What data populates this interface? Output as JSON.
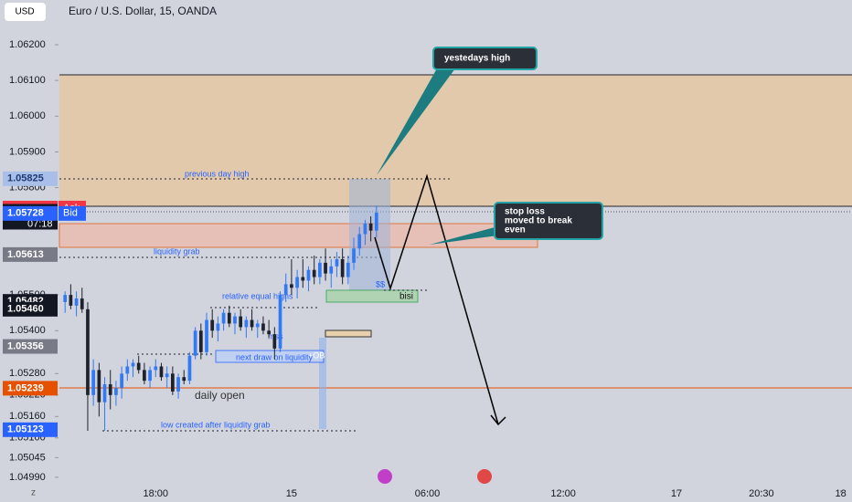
{
  "header": {
    "currency_button": "USD",
    "symbol_title": "Euro / U.S. Dollar, 15, OANDA"
  },
  "chart_data": {
    "type": "candlestick",
    "up_color": "#3179f5",
    "down_color": "#1e222d",
    "ylim": [
      1.04954,
      1.06325
    ],
    "yticks": [
      {
        "value": 1.062,
        "label": "1.06200"
      },
      {
        "value": 1.061,
        "label": "1.06100"
      },
      {
        "value": 1.06,
        "label": "1.06000"
      },
      {
        "value": 1.059,
        "label": "1.05900"
      },
      {
        "value": 1.058,
        "label": "1.05800"
      },
      {
        "value": 1.055,
        "label": "1.05500"
      },
      {
        "value": 1.054,
        "label": "1.05400"
      },
      {
        "value": 1.0528,
        "label": "1.05280"
      },
      {
        "value": 1.0522,
        "label": "1.05220"
      },
      {
        "value": 1.0516,
        "label": "1.05160"
      },
      {
        "value": 1.051,
        "label": "1.05100"
      },
      {
        "value": 1.05045,
        "label": "1.05045"
      },
      {
        "value": 1.0499,
        "label": "1.04990"
      }
    ],
    "xlim": [
      -17,
      123
    ],
    "xticks": [
      {
        "value": 0,
        "label": "18:00"
      },
      {
        "value": 24,
        "label": "15"
      },
      {
        "value": 48,
        "label": "06:00"
      },
      {
        "value": 72,
        "label": "12:00"
      },
      {
        "value": 92,
        "label": "17"
      },
      {
        "value": 107,
        "label": "20:30"
      },
      {
        "value": 121,
        "label": "18"
      }
    ],
    "x": [
      -16,
      -15,
      -14,
      -13,
      -12,
      -11,
      -10,
      -9,
      -8,
      -7,
      -6,
      -5,
      -4,
      -3,
      -2,
      -1,
      0,
      1,
      2,
      3,
      4,
      5,
      6,
      7,
      8,
      9,
      10,
      11,
      12,
      13,
      14,
      15,
      16,
      17,
      18,
      19,
      20,
      21,
      22,
      23,
      24,
      25,
      26,
      27,
      28,
      29,
      30,
      31,
      32,
      33,
      34,
      35,
      36,
      37,
      38,
      39
    ],
    "open": [
      1.0548,
      1.055,
      1.0547,
      1.0549,
      1.0546,
      1.0522,
      1.0529,
      1.052,
      1.0525,
      1.0522,
      1.0524,
      1.0528,
      1.053,
      1.0531,
      1.0529,
      1.0526,
      1.0529,
      1.053,
      1.0527,
      1.0528,
      1.0523,
      1.0527,
      1.0526,
      1.0533,
      1.054,
      1.0534,
      1.0543,
      1.054,
      1.0542,
      1.0545,
      1.0542,
      1.0544,
      1.0541,
      1.0543,
      1.0541,
      1.0542,
      1.054,
      1.0539,
      1.0535,
      1.055,
      1.0553,
      1.0552,
      1.0555,
      1.0554,
      1.0557,
      1.0555,
      1.0559,
      1.0556,
      1.0558,
      1.056,
      1.0555,
      1.0559,
      1.0563,
      1.0567,
      1.057,
      1.0568
    ],
    "high": [
      1.0551,
      1.0553,
      1.0551,
      1.0552,
      1.0548,
      1.0532,
      1.0531,
      1.0527,
      1.0529,
      1.0526,
      1.053,
      1.0532,
      1.0532,
      1.0533,
      1.0531,
      1.053,
      1.0532,
      1.0531,
      1.053,
      1.053,
      1.0528,
      1.0529,
      1.0534,
      1.0541,
      1.0542,
      1.0545,
      1.0546,
      1.0544,
      1.0546,
      1.0547,
      1.0545,
      1.0546,
      1.0544,
      1.0546,
      1.0543,
      1.0544,
      1.0543,
      1.0541,
      1.0551,
      1.0556,
      1.056,
      1.0557,
      1.056,
      1.0558,
      1.0561,
      1.056,
      1.0563,
      1.056,
      1.0562,
      1.0563,
      1.0561,
      1.0566,
      1.0569,
      1.0571,
      1.0572,
      1.0575
    ],
    "low": [
      1.0545,
      1.0546,
      1.0544,
      1.0545,
      1.0512,
      1.0519,
      1.0516,
      1.0512,
      1.0518,
      1.0519,
      1.0521,
      1.0526,
      1.0527,
      1.0528,
      1.0525,
      1.0524,
      1.0527,
      1.0526,
      1.0524,
      1.0522,
      1.0521,
      1.0525,
      1.0525,
      1.0532,
      1.0532,
      1.0533,
      1.0538,
      1.0537,
      1.054,
      1.0541,
      1.0539,
      1.054,
      1.0538,
      1.054,
      1.0538,
      1.0539,
      1.0538,
      1.0532,
      1.0534,
      1.0548,
      1.055,
      1.0549,
      1.0552,
      1.0551,
      1.0553,
      1.0553,
      1.0554,
      1.0552,
      1.0555,
      1.0553,
      1.0553,
      1.0557,
      1.0561,
      1.0564,
      1.0565,
      1.0566
    ],
    "close": [
      1.055,
      1.0547,
      1.0549,
      1.0546,
      1.0522,
      1.0529,
      1.052,
      1.0525,
      1.0522,
      1.0524,
      1.0528,
      1.053,
      1.0531,
      1.0529,
      1.0526,
      1.0529,
      1.053,
      1.0527,
      1.0528,
      1.0523,
      1.0527,
      1.0526,
      1.0533,
      1.054,
      1.0534,
      1.0543,
      1.054,
      1.0542,
      1.0545,
      1.0542,
      1.0544,
      1.0541,
      1.0543,
      1.0541,
      1.0542,
      1.054,
      1.0539,
      1.0535,
      1.055,
      1.0553,
      1.0552,
      1.0555,
      1.0554,
      1.0557,
      1.0555,
      1.0559,
      1.0556,
      1.0558,
      1.056,
      1.0555,
      1.0559,
      1.0563,
      1.0567,
      1.057,
      1.0568,
      1.0573
    ],
    "price_markers": [
      {
        "value": 1.05825,
        "label": "1.05825",
        "color": "#a9bfe8",
        "text_color": "#1e3a78"
      },
      {
        "value": 1.05743,
        "label": "1.05743",
        "color": "#f23645",
        "text_color": "#ffffff",
        "tag": "Ask"
      },
      {
        "value": 1.05734,
        "label": "1.05734",
        "color": "#131722",
        "text_color": "#ffffff",
        "sub": "07:18"
      },
      {
        "value": 1.05728,
        "label": "1.05728",
        "color": "#2962ff",
        "text_color": "#ffffff",
        "tag": "Bid"
      },
      {
        "value": 1.05613,
        "label": "1.05613",
        "color": "#787b86",
        "text_color": "#ffffff"
      },
      {
        "value": 1.05482,
        "label": "1.05482",
        "color": "#131722",
        "text_color": "#ffffff"
      },
      {
        "value": 1.0546,
        "label": "1.05460",
        "color": "#131722",
        "text_color": "#ffffff"
      },
      {
        "value": 1.05356,
        "label": "1.05356",
        "color": "#787b86",
        "text_color": "#ffffff"
      },
      {
        "value": 1.05239,
        "label": "1.05239",
        "color": "#e65100",
        "text_color": "#ffffff"
      },
      {
        "value": 1.05123,
        "label": "1.05123",
        "color": "#2962ff",
        "text_color": "#ffffff"
      }
    ],
    "annotations": {
      "yesterdays_high": "yestedays high",
      "stop_loss": [
        "stop loss",
        "moved to break",
        "even"
      ],
      "previous_day_high": "previous day high",
      "liquidity_grab": "liquidity grab",
      "relative_equal_highs": "relative equal highs",
      "mss": "mss",
      "next_draw": "next draw on liquidity",
      "ob": "+OB",
      "daily_open": "daily open",
      "low_created": "low created after liquidity grab",
      "bisi": "bisi",
      "ssl": "$$",
      "corner": "z"
    }
  }
}
